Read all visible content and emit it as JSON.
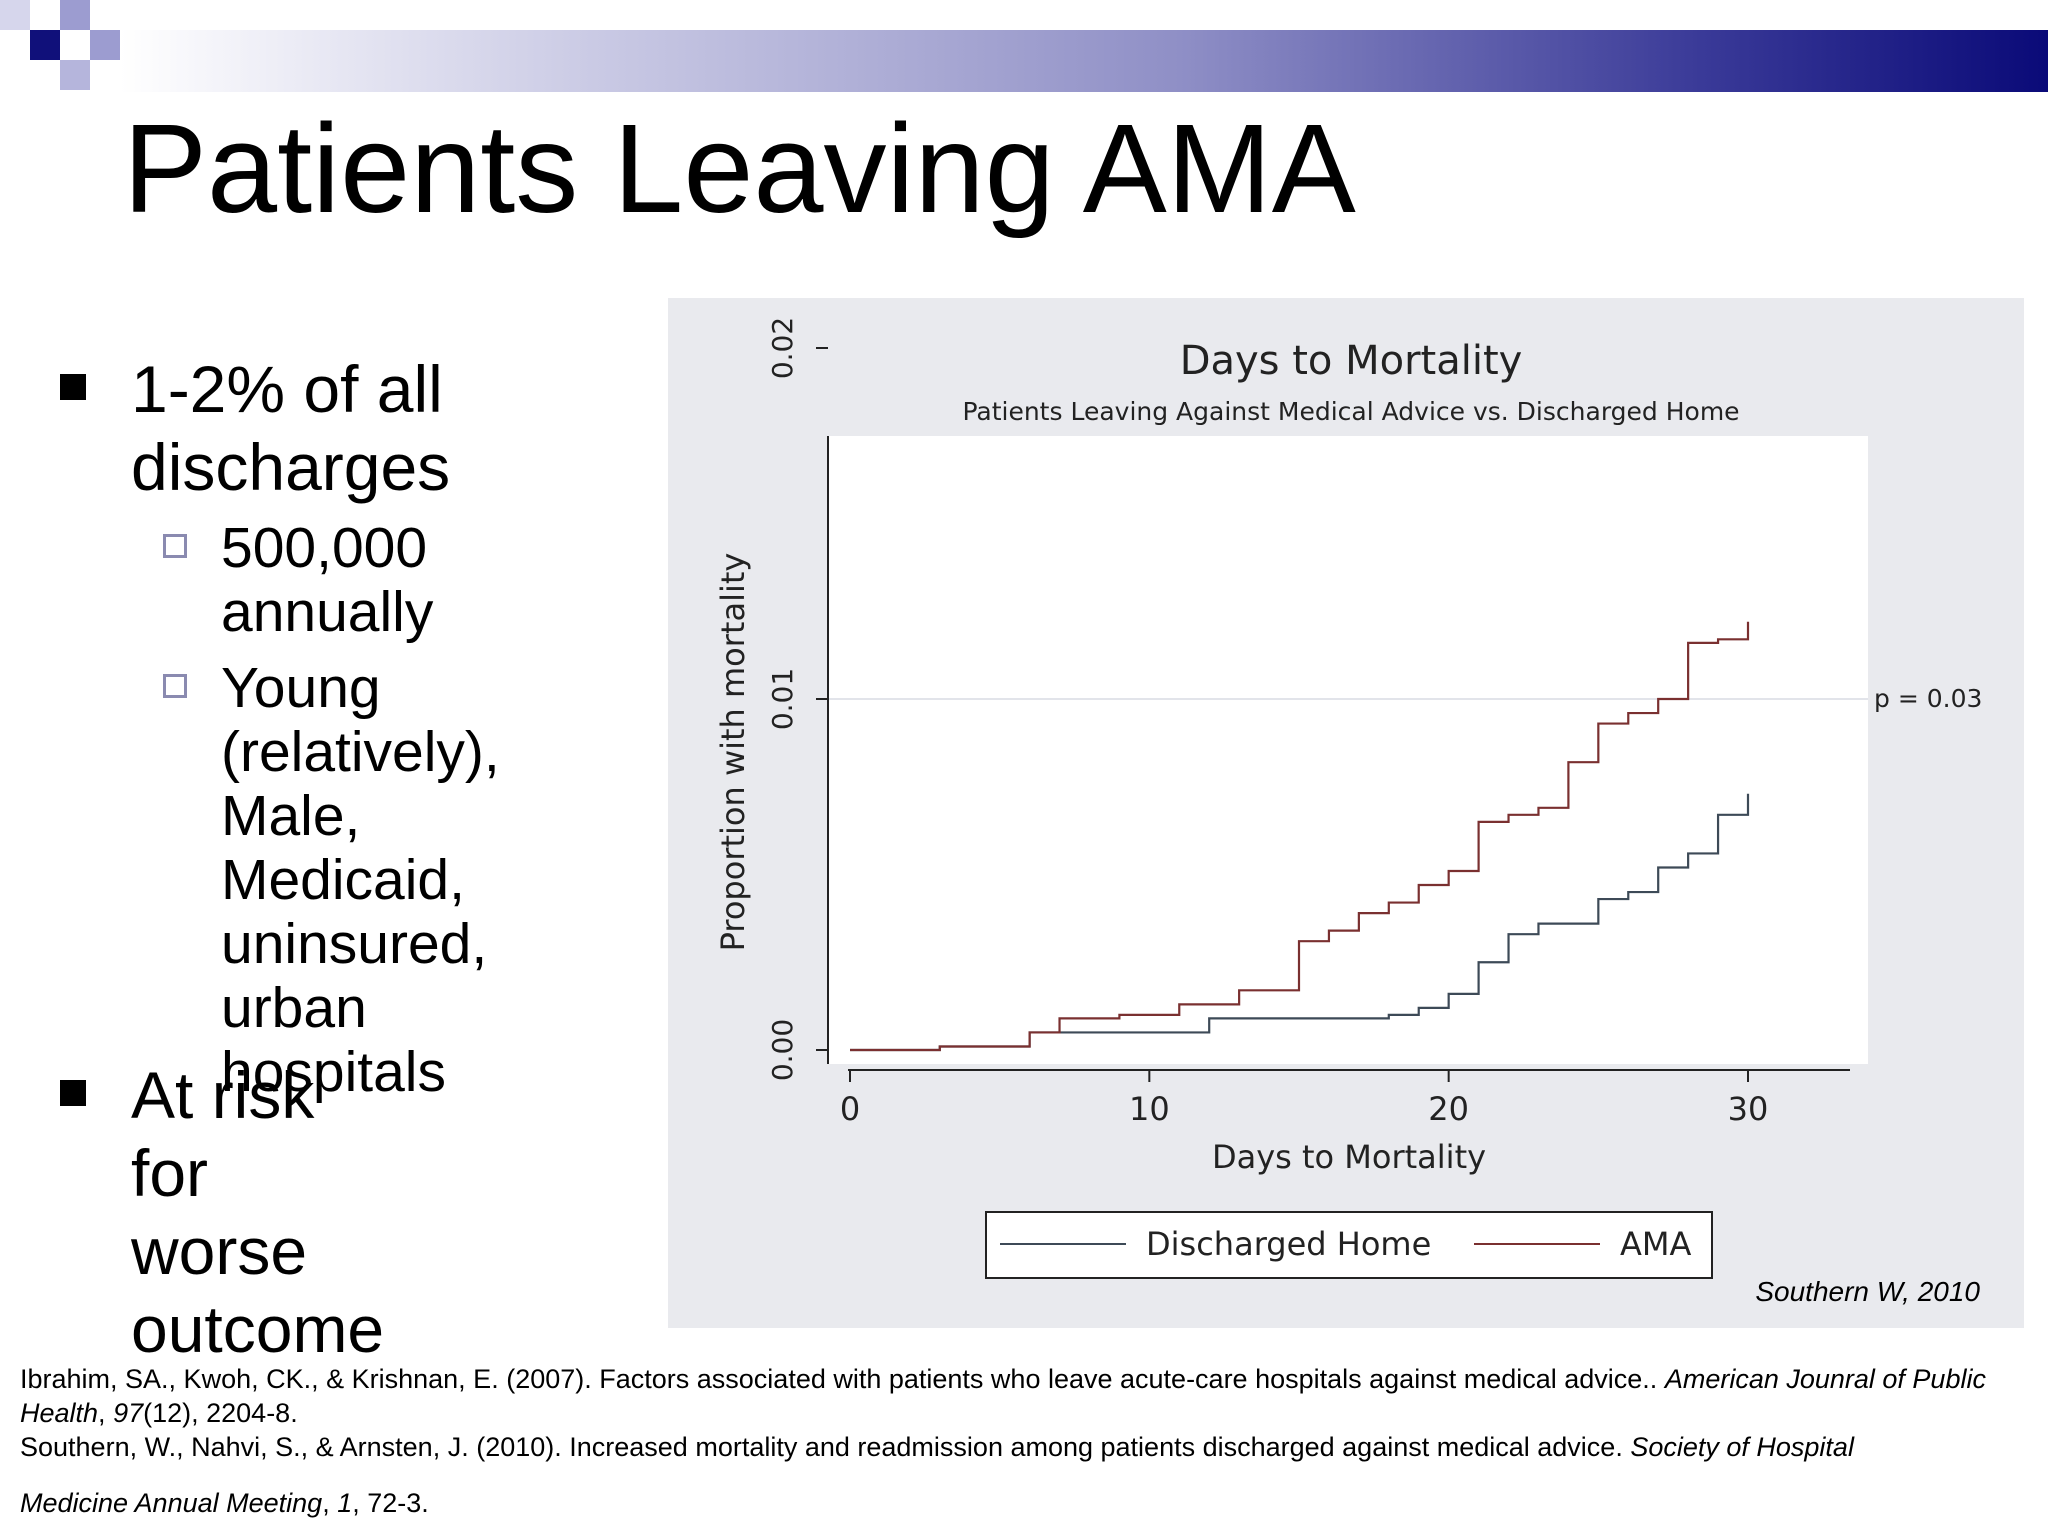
{
  "slide": {
    "title": "Patients Leaving AMA",
    "bullets": [
      {
        "lines": [
          "1-2% of all",
          "discharges"
        ],
        "sub": [
          {
            "lines": [
              "500,000",
              "annually"
            ]
          },
          {
            "lines": [
              "Young",
              "(relatively),",
              "Male,",
              "Medicaid,",
              "uninsured,",
              "urban hospitals"
            ]
          }
        ]
      },
      {
        "lines": [
          "At risk for",
          "worse outcome"
        ],
        "sub": []
      }
    ],
    "source_note": "Southern W, 2010",
    "references": {
      "ref1": {
        "authors": "Ibrahim, SA., Kwoh, CK., & Krishnan, E. (2007). Factors associated with patients who leave acute-care hospitals against medical advice..",
        "journal": "American Jounral of Public Health",
        "volume": "97",
        "rest": "(12), 2204-8."
      },
      "ref2": {
        "authors": "Southern, W., Nahvi, S., & Arnsten, J. (2010). Increased mortality and readmission among patients discharged against medical advice.",
        "journal_part1": "Society of Hospital",
        "journal_part2": "Medicine Annual Meeting",
        "volume": "1",
        "rest": ", 72-3."
      }
    },
    "colors": {
      "bar_dark": "#0a0a78",
      "square_dark": "#10107a",
      "square_light": "#9c9cd0",
      "chart_background": "#e9eaee"
    }
  },
  "chart_data": {
    "type": "line",
    "step": true,
    "title": "Days to Mortality",
    "subtitle": "Patients Leaving Against Medical Advice vs. Discharged Home",
    "xlabel": "Days to Mortality",
    "ylabel": "Proportion with mortality",
    "xlim": [
      0,
      30
    ],
    "ylim": [
      0,
      0.02
    ],
    "xticks": [
      0,
      10,
      20,
      30
    ],
    "yticks": [
      0,
      0.01,
      0.02
    ],
    "xtick_labels": [
      "0",
      "10",
      "20",
      "30"
    ],
    "ytick_labels": [
      "0.00",
      "0.01",
      "0.02"
    ],
    "grid": "horizontal at 0.01",
    "legend_position": "bottom",
    "annotation": "p = 0.03",
    "series": [
      {
        "name": "Discharged Home",
        "color": "#3d4a57",
        "x": [
          0,
          3,
          6,
          12,
          18,
          19,
          20,
          21,
          22,
          23,
          25,
          26,
          27,
          28,
          29,
          30
        ],
        "y": [
          0,
          0.0001,
          0.0005,
          0.0009,
          0.001,
          0.0012,
          0.0016,
          0.0025,
          0.0033,
          0.0036,
          0.0043,
          0.0045,
          0.0052,
          0.0056,
          0.0067,
          0.0073
        ]
      },
      {
        "name": "AMA",
        "color": "#7a3030",
        "x": [
          0,
          3,
          6,
          7,
          9,
          11,
          13,
          15,
          16,
          17,
          18,
          19,
          20,
          21,
          22,
          23,
          24,
          25,
          26,
          27,
          28,
          29,
          30
        ],
        "y": [
          0,
          0.0001,
          0.0005,
          0.0009,
          0.001,
          0.0013,
          0.0017,
          0.0031,
          0.0034,
          0.0039,
          0.0042,
          0.0047,
          0.0051,
          0.0065,
          0.0067,
          0.0069,
          0.0082,
          0.0093,
          0.0096,
          0.01,
          0.0116,
          0.0117,
          0.0122
        ]
      }
    ]
  }
}
